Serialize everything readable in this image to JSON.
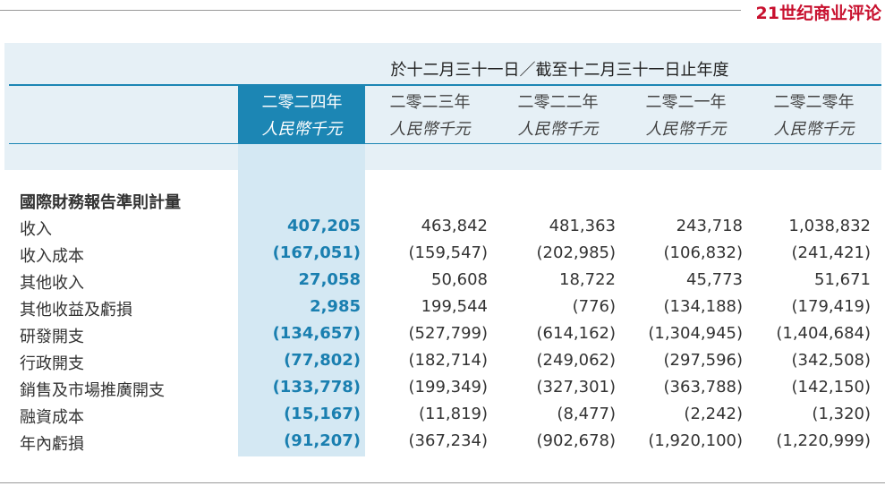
{
  "header": {
    "logo": "21世纪商业评论"
  },
  "table": {
    "title": "於十二月三十一日／截至十二月三十一日止年度",
    "columns": [
      {
        "year": "二零二四年",
        "unit": "人民幣千元"
      },
      {
        "year": "二零二三年",
        "unit": "人民幣千元"
      },
      {
        "year": "二零二二年",
        "unit": "人民幣千元"
      },
      {
        "year": "二零二一年",
        "unit": "人民幣千元"
      },
      {
        "year": "二零二零年",
        "unit": "人民幣千元"
      }
    ],
    "section": "國際財務報告準則計量",
    "rows": [
      {
        "label": "收入",
        "values": [
          "407,205",
          "463,842",
          "481,363",
          "243,718",
          "1,038,832"
        ]
      },
      {
        "label": "收入成本",
        "values": [
          "(167,051)",
          "(159,547)",
          "(202,985)",
          "(106,832)",
          "(241,421)"
        ]
      },
      {
        "label": "其他收入",
        "values": [
          "27,058",
          "50,608",
          "18,722",
          "45,773",
          "51,671"
        ]
      },
      {
        "label": "其他收益及虧損",
        "values": [
          "2,985",
          "199,544",
          "(776)",
          "(134,188)",
          "(179,419)"
        ]
      },
      {
        "label": "研發開支",
        "values": [
          "(134,657)",
          "(527,799)",
          "(614,162)",
          "(1,304,945)",
          "(1,404,684)"
        ]
      },
      {
        "label": "行政開支",
        "values": [
          "(77,802)",
          "(182,714)",
          "(249,062)",
          "(297,596)",
          "(342,508)"
        ]
      },
      {
        "label": "銷售及市場推廣開支",
        "values": [
          "(133,778)",
          "(199,349)",
          "(327,301)",
          "(363,788)",
          "(142,150)"
        ]
      },
      {
        "label": "融資成本",
        "values": [
          "(15,167)",
          "(11,819)",
          "(8,477)",
          "(2,242)",
          "(1,320)"
        ]
      },
      {
        "label": "年內虧損",
        "values": [
          "(91,207)",
          "(367,234)",
          "(902,678)",
          "(1,920,100)",
          "(1,220,999)"
        ]
      }
    ]
  }
}
